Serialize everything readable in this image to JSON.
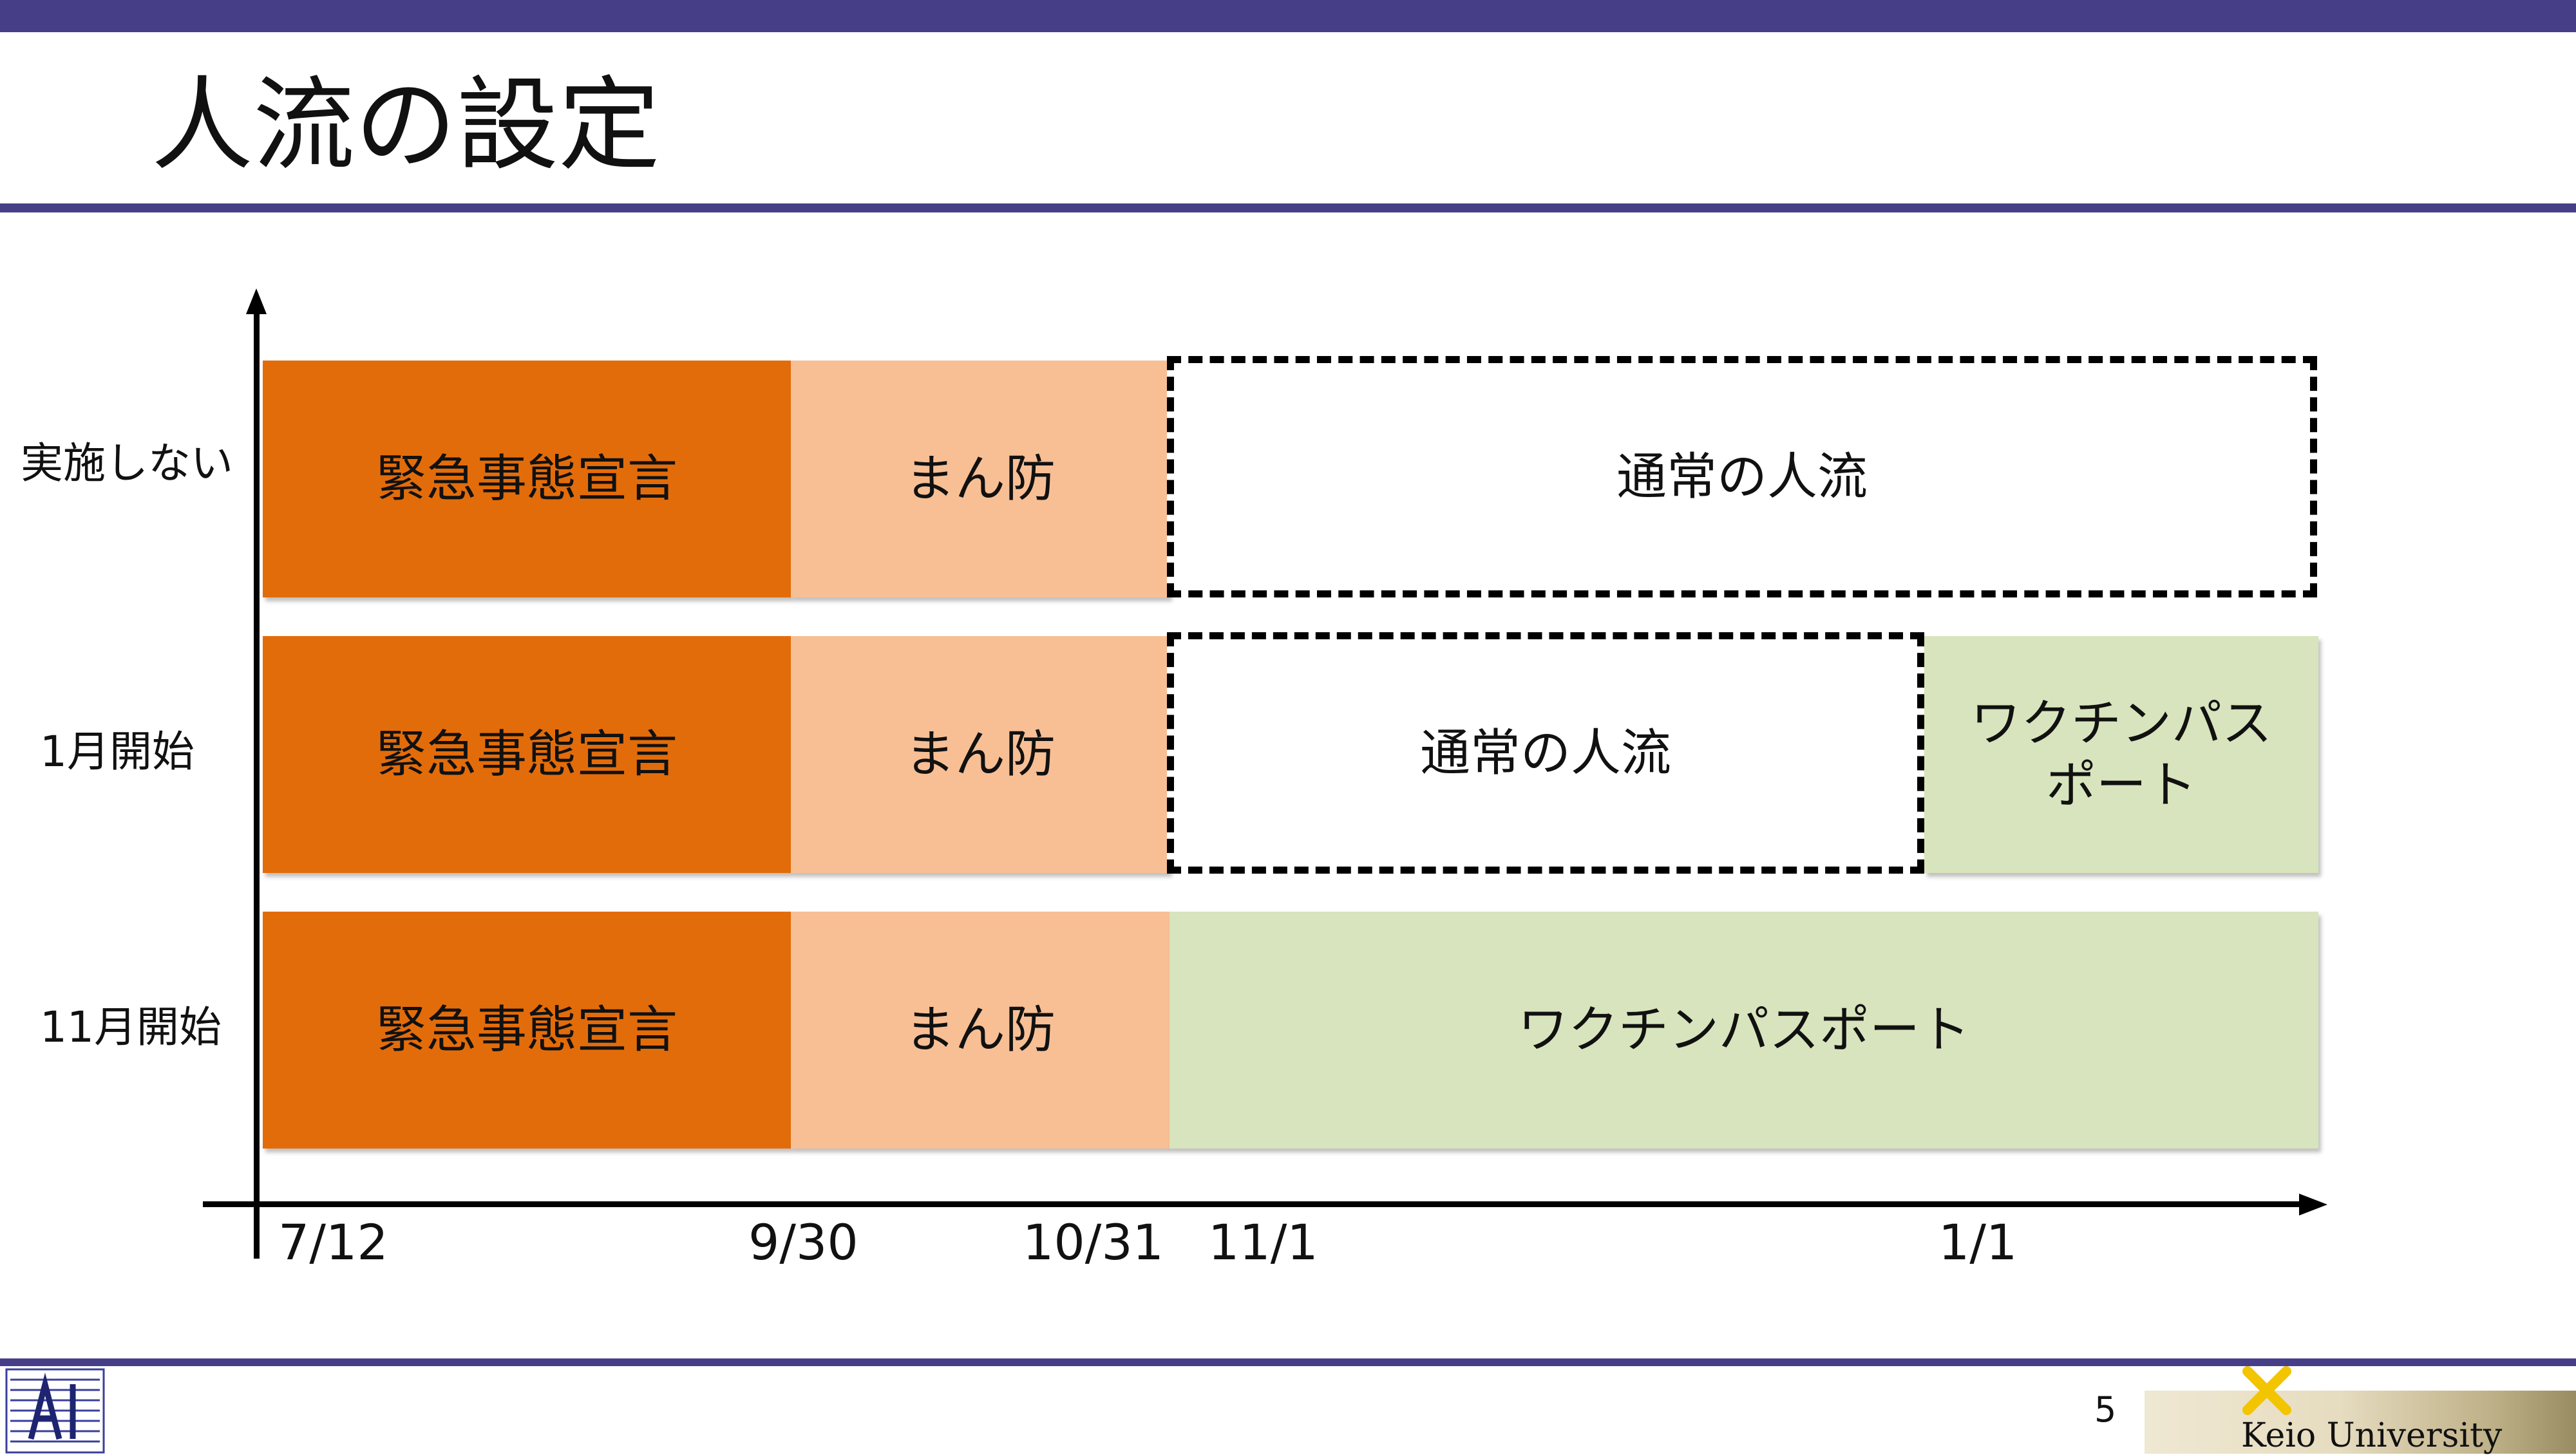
{
  "title": "人流の設定",
  "rows": [
    {
      "label": "実施しない",
      "segments": [
        "緊急事態宣言",
        "まん防",
        "通常の人流"
      ]
    },
    {
      "label": "1月開始",
      "segments": [
        "緊急事態宣言",
        "まん防",
        "通常の人流",
        "ワクチンパス",
        "ポート"
      ]
    },
    {
      "label": "11月開始",
      "segments": [
        "緊急事態宣言",
        "まん防",
        "ワクチンパスポート"
      ]
    }
  ],
  "axis_ticks": [
    "7/12",
    "9/30",
    "10/31",
    "11/1",
    "1/1"
  ],
  "colors": {
    "header_band": "#463f88",
    "emergency": "#e36c0a",
    "manbo": "#f8bf95",
    "vaccine_passport": "#d8e4bd",
    "normal": "#ffffff"
  },
  "footer": {
    "page_number": "5",
    "university": "Keio University"
  }
}
